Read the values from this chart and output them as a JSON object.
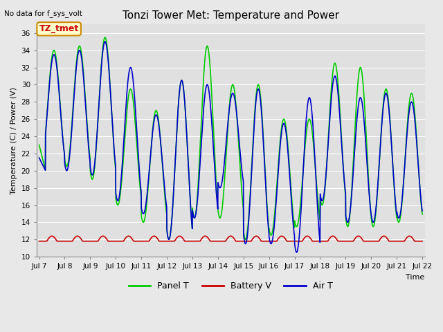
{
  "title": "Tonzi Tower Met: Temperature and Power",
  "ylabel": "Temperature (C) / Power (V)",
  "xlabel": "Time",
  "no_data_text": "No data for f_sys_volt",
  "annotation_text": "TZ_tmet",
  "ylim": [
    10,
    37
  ],
  "yticks": [
    10,
    12,
    14,
    16,
    18,
    20,
    22,
    24,
    26,
    28,
    30,
    32,
    34,
    36
  ],
  "xtick_labels": [
    "Jul 7",
    "Jul 8",
    "Jul 9",
    "Jul 10",
    "Jul 11",
    "Jul 12",
    "Jul 13",
    "Jul 14",
    "Jul 15",
    "Jul 16",
    "Jul 17",
    "Jul 18",
    "Jul 19",
    "Jul 20",
    "Jul 21",
    "Jul 22"
  ],
  "legend_labels": [
    "Panel T",
    "Battery V",
    "Air T"
  ],
  "legend_colors": [
    "#00cc00",
    "#cc0000",
    "#0000cc"
  ],
  "bg_color": "#e8e8e8",
  "plot_bg_color": "#e0e0e0",
  "grid_color": "#ffffff",
  "panel_color": "#00cc00",
  "battery_color": "#cc0000",
  "air_color": "#0000cc",
  "figsize": [
    6.4,
    4.8
  ],
  "dpi": 100
}
